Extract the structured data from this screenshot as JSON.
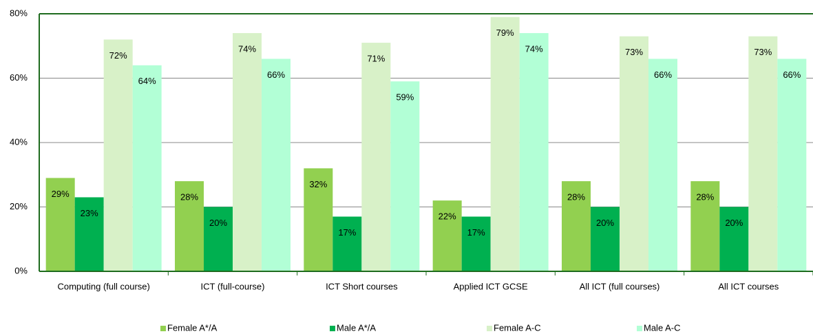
{
  "chart_data": {
    "type": "bar",
    "categories": [
      "Computing (full course)",
      "ICT (full-course)",
      "ICT Short courses",
      "Applied ICT GCSE",
      "All ICT (full courses)",
      "All ICT courses"
    ],
    "series": [
      {
        "name": "Female A*/A",
        "color": "#92d050",
        "values": [
          29,
          28,
          32,
          22,
          28,
          28
        ],
        "value_labels": [
          "29%",
          "28%",
          "32%",
          "22%",
          "28%",
          "28%"
        ]
      },
      {
        "name": "Male A*/A",
        "color": "#00b050",
        "values": [
          23,
          20,
          17,
          17,
          20,
          20
        ],
        "value_labels": [
          "23%",
          "20%",
          "17%",
          "17%",
          "20%",
          "20%"
        ]
      },
      {
        "name": "Female A-C",
        "color": "#d8f1c8",
        "values": [
          72,
          74,
          71,
          79,
          73,
          73
        ],
        "value_labels": [
          "72%",
          "74%",
          "71%",
          "79%",
          "73%",
          "73%"
        ]
      },
      {
        "name": "Male A-C",
        "color": "#b2ffd6",
        "values": [
          64,
          66,
          59,
          74,
          66,
          66
        ],
        "value_labels": [
          "64%",
          "66%",
          "59%",
          "74%",
          "66%",
          "66%"
        ]
      }
    ],
    "ylim": [
      0,
      80
    ],
    "yticks": [
      {
        "value": 0,
        "label": "0%"
      },
      {
        "value": 20,
        "label": "20%"
      },
      {
        "value": 40,
        "label": "40%"
      },
      {
        "value": 60,
        "label": "60%"
      },
      {
        "value": 80,
        "label": "80%"
      }
    ],
    "grid": true,
    "legend": "bottom"
  }
}
